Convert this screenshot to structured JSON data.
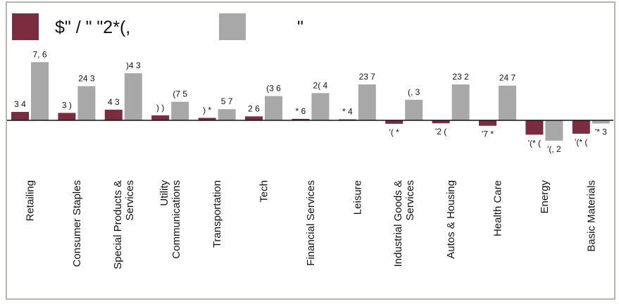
{
  "chart_data": {
    "type": "bar",
    "title": "",
    "xlabel": "",
    "ylabel": "",
    "legend_position": "top-left",
    "grid": false,
    "categories": [
      [
        "Retailing"
      ],
      [
        "Consumer Staples"
      ],
      [
        "Special Products &",
        "Services"
      ],
      [
        "Utility",
        "Communications"
      ],
      [
        "Transportation"
      ],
      [
        "Tech"
      ],
      [
        "Financial Services"
      ],
      [
        "Leisure"
      ],
      [
        "Industrial Goods &",
        "Services"
      ],
      [
        "Autos & Housing"
      ],
      [
        "Health Care"
      ],
      [
        "Energy"
      ],
      [
        "Basic Materials"
      ]
    ],
    "series": [
      {
        "name": "$\" / \" \"2*(,",
        "color": "#7b2c3f",
        "values": [
          3.4,
          3.0,
          4.3,
          2.0,
          1.0,
          1.6,
          0.6,
          0.4,
          -1.4,
          -1.2,
          -2.2,
          -5.8,
          -5.4
        ],
        "labels": [
          "3 4",
          "3 )",
          "4 3",
          ") )",
          ") *",
          "2 6",
          "* 6",
          "* 4",
          "'( *",
          "'2 (",
          "'7 *",
          "'(* (",
          "'(* ("
        ]
      },
      {
        "name": "\"",
        "color": "#a8a8a8",
        "values": [
          23.5,
          13.8,
          19.0,
          7.5,
          4.5,
          9.8,
          11.0,
          14.5,
          8.3,
          14.5,
          14.0,
          -8.2,
          -1.3
        ],
        "labels": [
          "7, 6",
          "24 3",
          ")4 3",
          "(7 5",
          "5 7",
          "(3 6",
          "2( 4",
          "23 7",
          "(, 3",
          "23 2",
          "24 7",
          "'(, 2",
          "'* 3"
        ]
      }
    ],
    "ylim": [
      -12,
      28
    ]
  }
}
